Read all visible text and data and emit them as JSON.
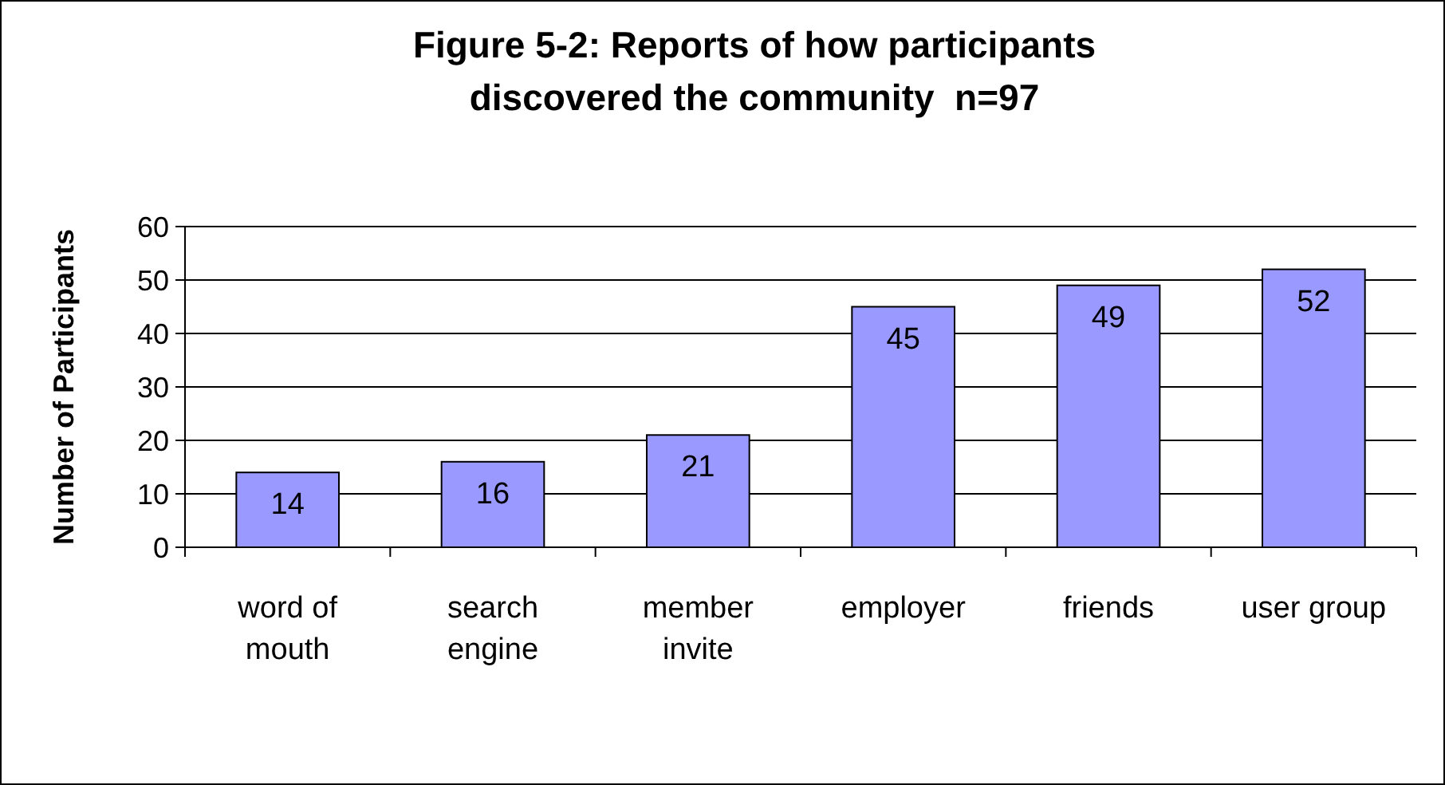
{
  "chart_data": {
    "type": "bar",
    "title": "Figure 5-2: Reports of how participants discovered the community  n=97",
    "ylabel": "Number of Participants",
    "categories": [
      "word of mouth",
      "search engine",
      "member invite",
      "employer",
      "friends",
      "user group"
    ],
    "values": [
      14,
      16,
      21,
      45,
      49,
      52
    ],
    "color": "#9999ff",
    "ylim": [
      0,
      60
    ],
    "yticks": [
      0,
      10,
      20,
      30,
      40,
      50,
      60
    ],
    "grid": "y",
    "data_labels": true
  }
}
